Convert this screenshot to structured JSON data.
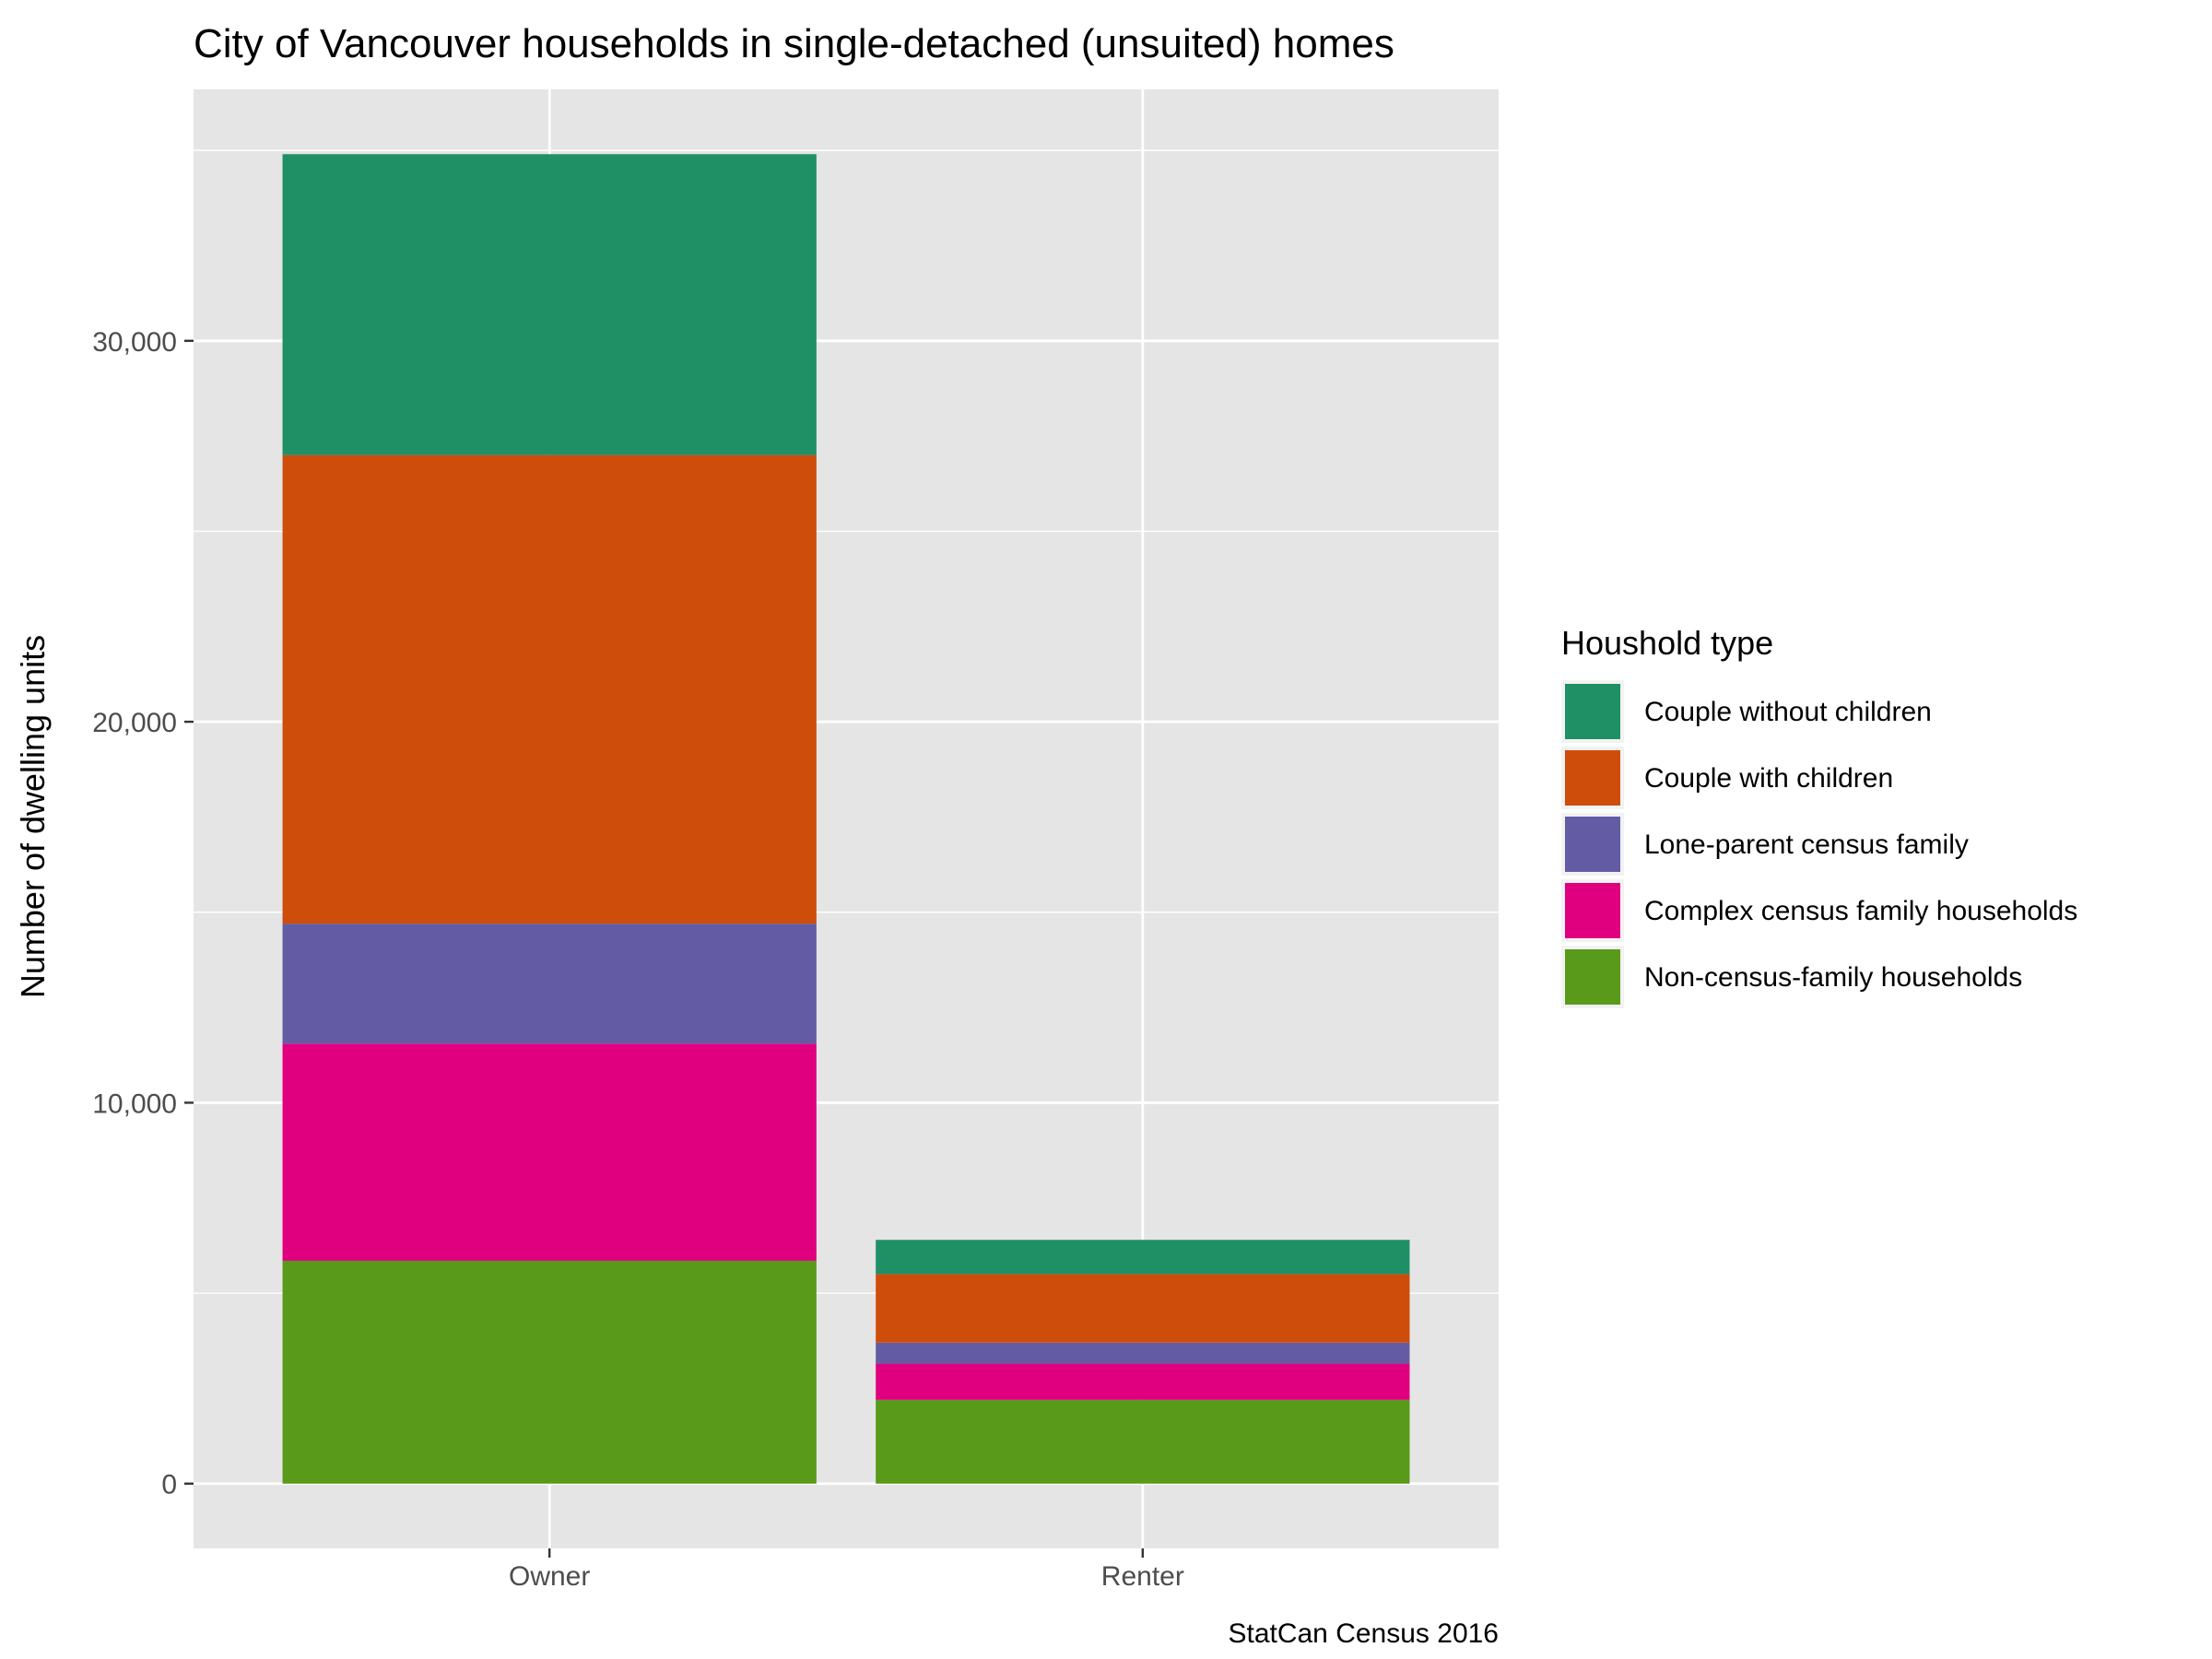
{
  "chart_data": {
    "type": "bar",
    "stacked": true,
    "title": "City of Vancouver households in single-detached (unsuited) homes",
    "xlabel": "",
    "ylabel": "Number of dwelling units",
    "caption": "StatCan Census 2016",
    "categories": [
      "Owner",
      "Renter"
    ],
    "ylim": [
      -1700,
      36600
    ],
    "y_ticks": [
      0,
      10000,
      20000,
      30000
    ],
    "y_tick_labels": [
      "0",
      "10,000",
      "20,000",
      "30,000"
    ],
    "grid": true,
    "legend": {
      "title": "Houshold type",
      "position": "right"
    },
    "series": [
      {
        "name": "Non-census-family households",
        "color": "#5a9a1a",
        "values": [
          5850,
          2200
        ]
      },
      {
        "name": "Complex census family households",
        "color": "#e0007f",
        "values": [
          5700,
          950
        ]
      },
      {
        "name": "Lone-parent census family",
        "color": "#635ca5",
        "values": [
          3150,
          550
        ]
      },
      {
        "name": "Couple with children",
        "color": "#ce4d0a",
        "values": [
          12300,
          1800
        ]
      },
      {
        "name": "Couple without children",
        "color": "#1f8f66",
        "values": [
          7900,
          900
        ]
      }
    ],
    "legend_order": [
      "Couple without children",
      "Couple with children",
      "Lone-parent census family",
      "Complex census family households",
      "Non-census-family households"
    ]
  },
  "colors": {
    "panel_background": "#e5e5e5",
    "grid_major": "#ffffff",
    "text": "#000000",
    "tick_text": "#4d4d4d"
  }
}
